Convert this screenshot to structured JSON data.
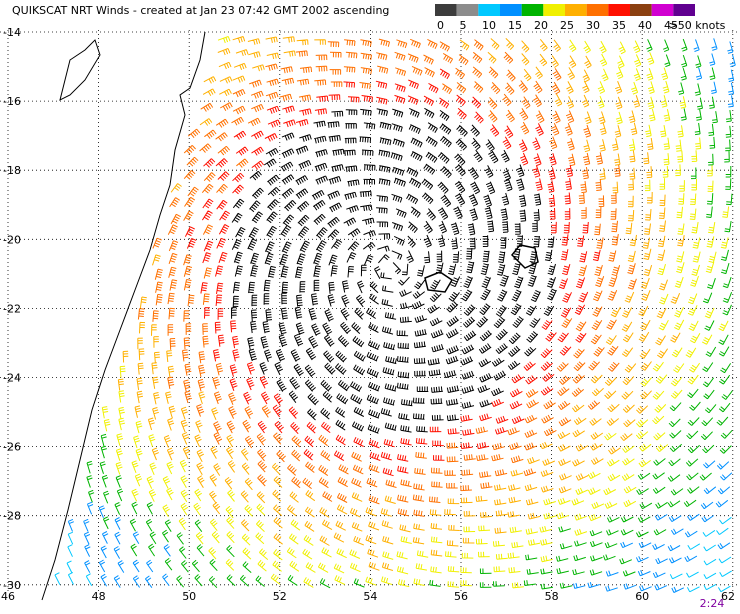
{
  "title": "QUIKSCAT NRT Winds - created at Jan 23 07:42 GMT 2002 ascending",
  "legend": {
    "labels": [
      "0",
      "5",
      "10",
      "15",
      "20",
      "25",
      "30",
      "35",
      "40",
      "45",
      ">50 knots"
    ],
    "colors": [
      "#3c3c3c",
      "#8c8c8c",
      "#00c8ff",
      "#0090ff",
      "#00b400",
      "#f0f000",
      "#ffb000",
      "#ff7000",
      "#ff1000",
      "#8b4010",
      "#d000d0",
      "#600090"
    ]
  },
  "lat_labels": [
    "-14",
    "-16",
    "-18",
    "-20",
    "-22",
    "-24",
    "-26",
    "-28",
    "-30"
  ],
  "lon_labels": [
    "46",
    "48",
    "50",
    "52",
    "54",
    "56",
    "58",
    "60",
    "62"
  ],
  "time_label": "2:24"
}
